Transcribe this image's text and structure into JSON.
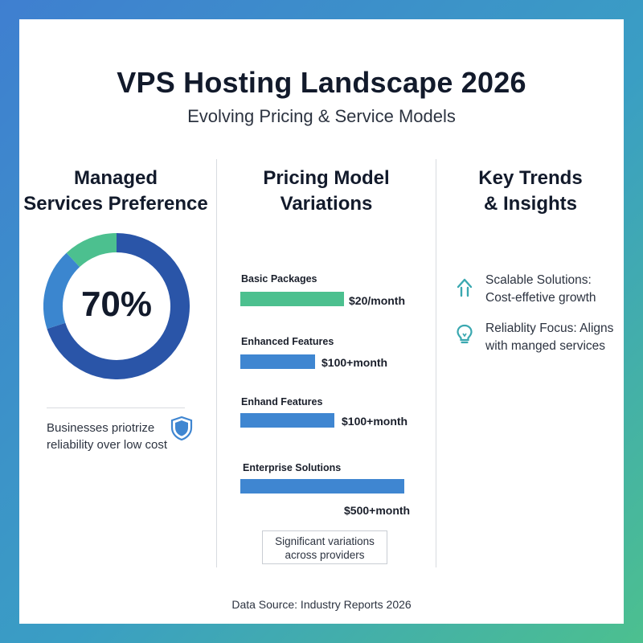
{
  "header": {
    "title": "VPS Hosting Landscape 2026",
    "subtitle": "Evolving Pricing & Service Models"
  },
  "columns": {
    "managed": {
      "heading_line1": "Managed",
      "heading_line2": "Services Preference"
    },
    "pricing": {
      "heading_line1": "Pricing Model",
      "heading_line2": "Variations"
    },
    "trends": {
      "heading_line1": "Key Trends",
      "heading_line2": "& Insights"
    }
  },
  "managed_note": "Businesses priotrize reliability over low cost",
  "pricing_note_line1": "Significant variations",
  "pricing_note_line2": "across providers",
  "trends": [
    {
      "icon": "arrow-up-icon",
      "line1": "Scalable Solutions:",
      "line2": "Cost-effetive growth"
    },
    {
      "icon": "lightbulb-icon",
      "line1": "Reliablity Focus: Aligns",
      "line2": "with manged services"
    }
  ],
  "footer": {
    "source": "Data Source: Industry Reports 2026"
  },
  "colors": {
    "donut_main": "#2a55a8",
    "donut_secondary": "#3b86cf",
    "donut_accent": "#4cc08f",
    "bar_green": "#4cc08f",
    "bar_blue": "#3f86d1",
    "shield": "#3f86d1",
    "icon_teal": "#3aa8b0"
  },
  "chart_data": [
    {
      "type": "pie",
      "label": "70%",
      "slices": [
        {
          "value": 70,
          "color": "#2a55a8"
        },
        {
          "value": 18,
          "color": "#3b86cf"
        },
        {
          "value": 12,
          "color": "#4cc08f"
        }
      ]
    },
    {
      "type": "bar",
      "orientation": "horizontal",
      "categories": [
        "Basic Packages",
        "Enhanced Features",
        "Enhand Features",
        "Enterprise Solutions"
      ],
      "values": [
        20,
        100,
        100,
        500
      ],
      "value_labels": [
        "$20/month",
        "$100+month",
        "$100+month",
        "$500+month"
      ],
      "colors": [
        "#4cc08f",
        "#3f86d1",
        "#3f86d1",
        "#3f86d1"
      ]
    }
  ]
}
